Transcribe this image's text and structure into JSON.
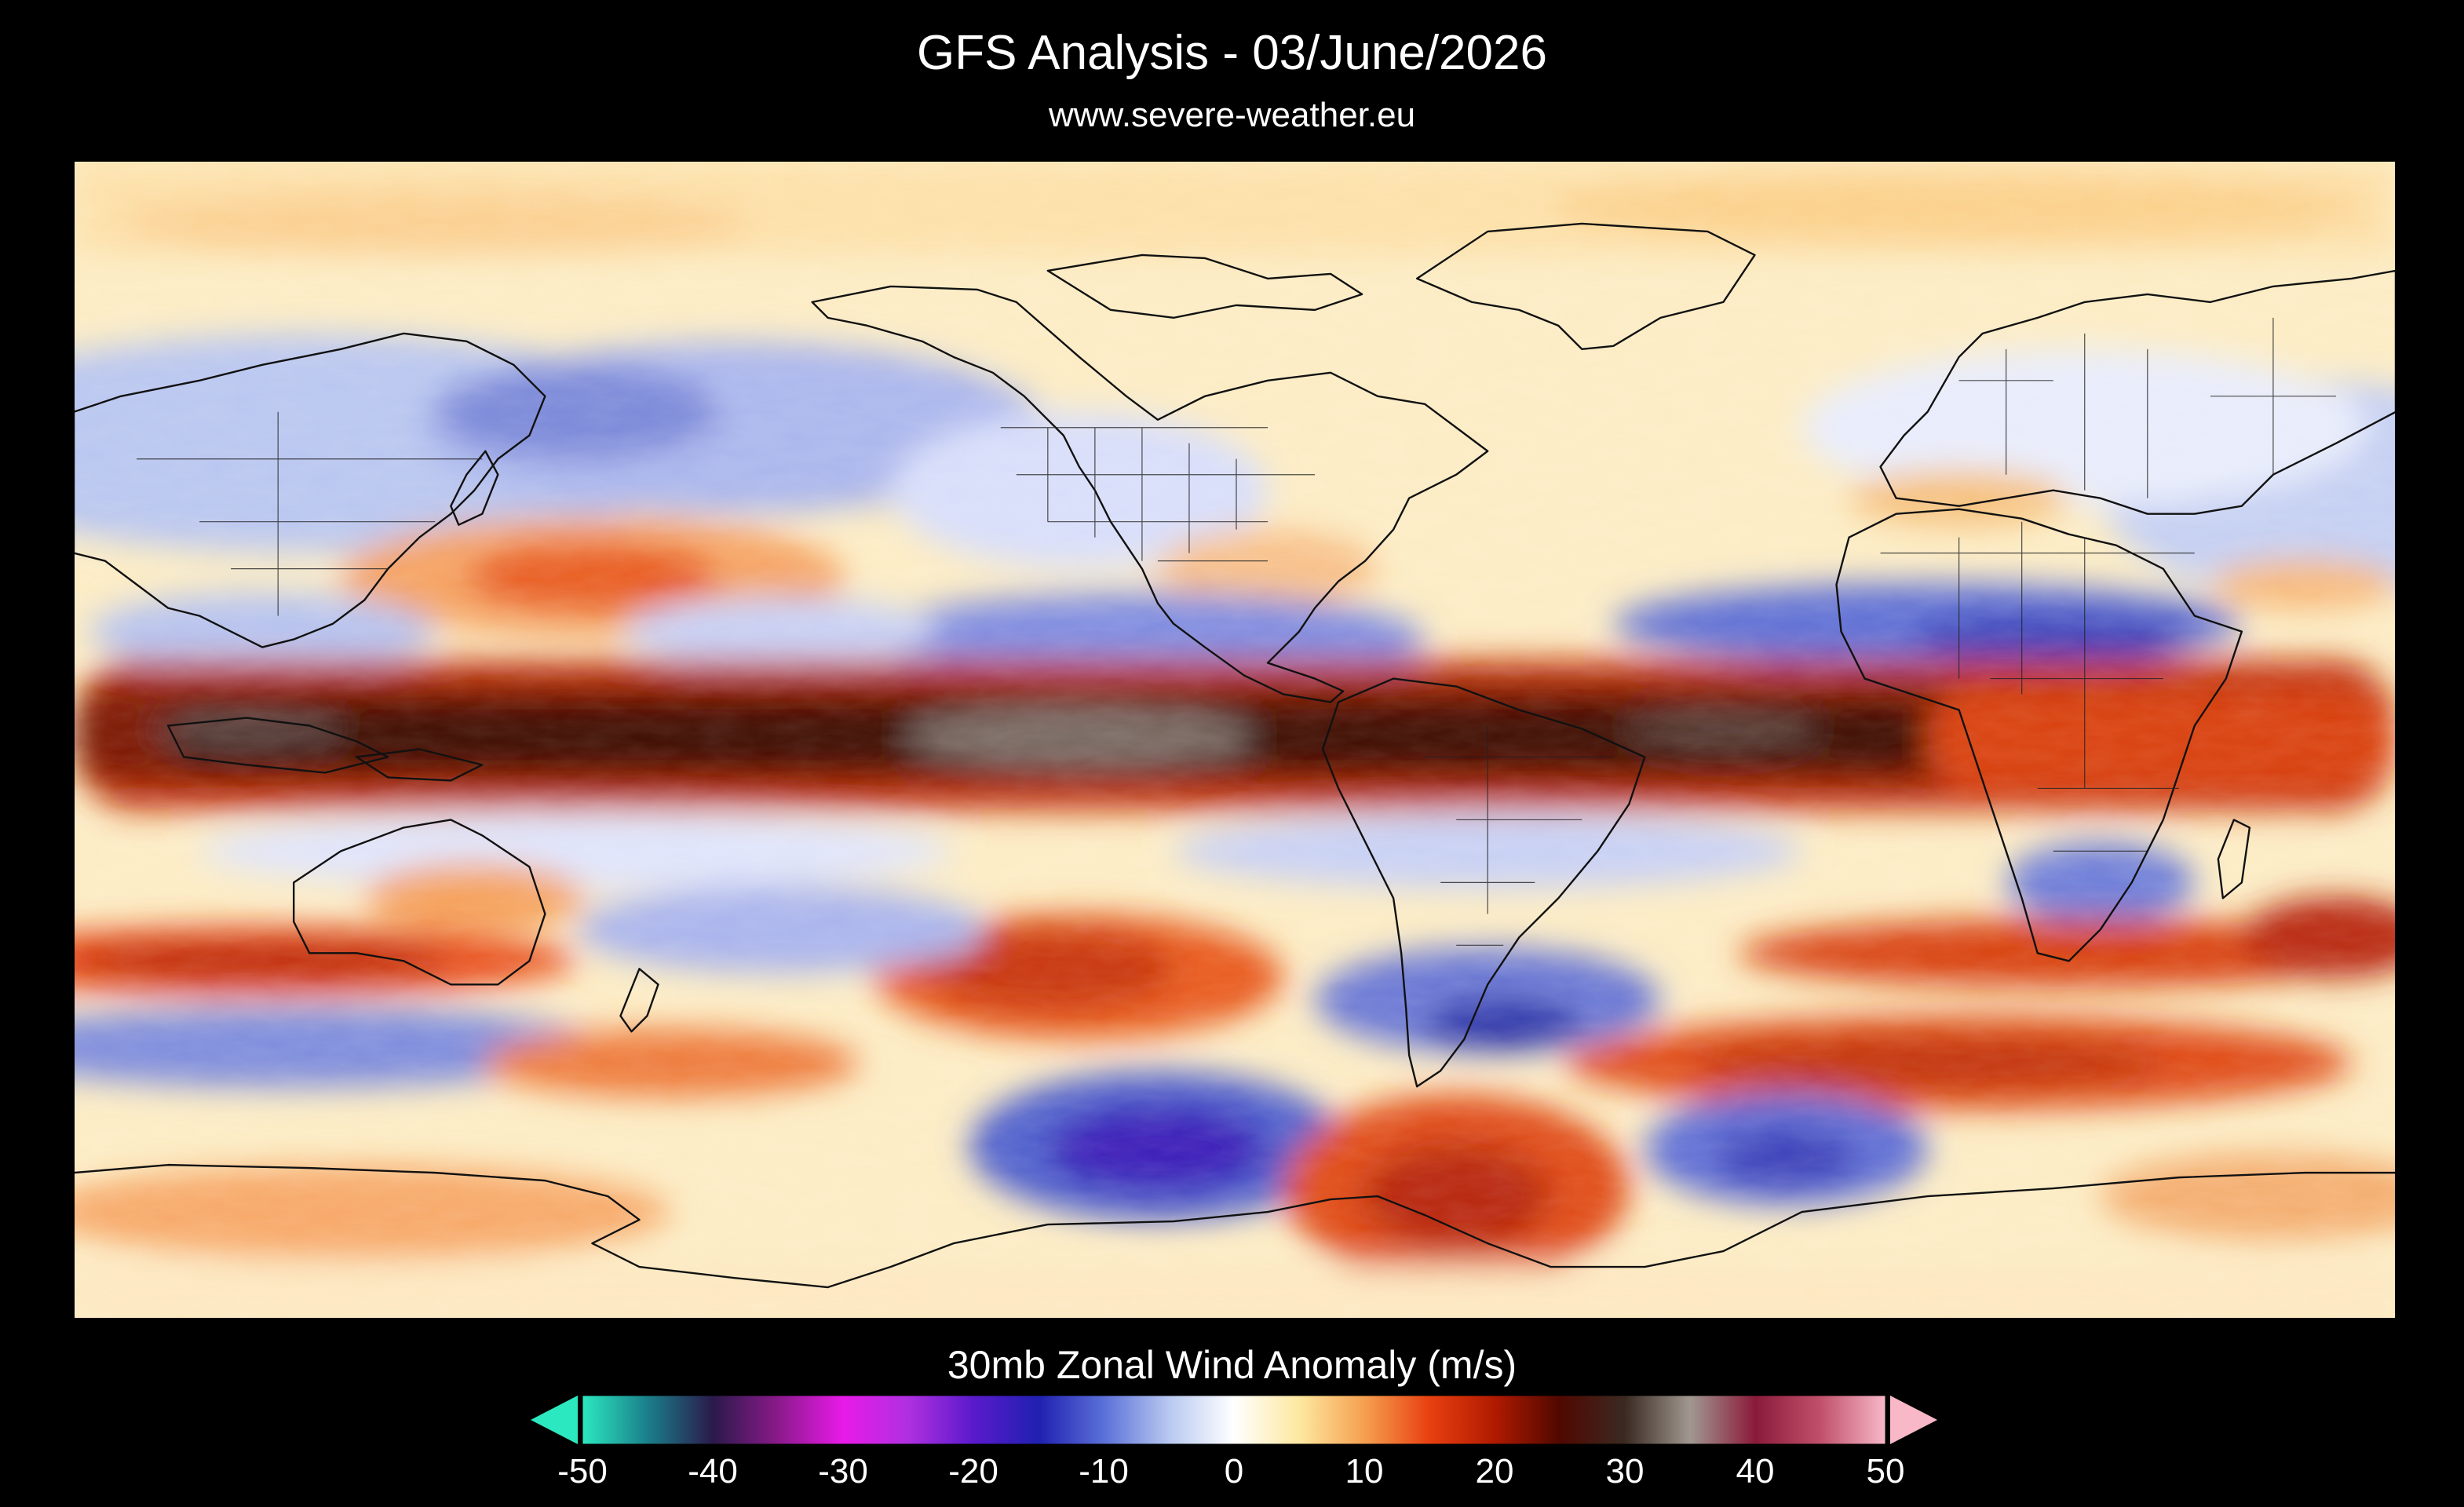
{
  "header": {
    "title": "GFS Analysis - 03/June/2026",
    "source": "www.severe-weather.eu"
  },
  "colorbar": {
    "title": "30mb Zonal Wind Anomaly (m/s)",
    "ticks": [
      "-50",
      "-40",
      "-30",
      "-20",
      "-10",
      "0",
      "10",
      "20",
      "30",
      "40",
      "50"
    ],
    "stops": [
      {
        "value": -50,
        "color": "#2ce8c0"
      },
      {
        "value": -45,
        "color": "#1a7f8a"
      },
      {
        "value": -40,
        "color": "#2a1a4a"
      },
      {
        "value": -35,
        "color": "#8a1a8a"
      },
      {
        "value": -30,
        "color": "#e81ae8"
      },
      {
        "value": -25,
        "color": "#b030e0"
      },
      {
        "value": -20,
        "color": "#5a1acc"
      },
      {
        "value": -15,
        "color": "#2020b0"
      },
      {
        "value": -10,
        "color": "#5a70d8"
      },
      {
        "value": -5,
        "color": "#b8c8f0"
      },
      {
        "value": 0,
        "color": "#ffffff"
      },
      {
        "value": 5,
        "color": "#fde8a0"
      },
      {
        "value": 10,
        "color": "#f5a050"
      },
      {
        "value": 15,
        "color": "#e84010"
      },
      {
        "value": 20,
        "color": "#b01a00"
      },
      {
        "value": 25,
        "color": "#500800"
      },
      {
        "value": 30,
        "color": "#3a2a22"
      },
      {
        "value": 35,
        "color": "#a09890"
      },
      {
        "value": 40,
        "color": "#8a1a3a"
      },
      {
        "value": 45,
        "color": "#c0506a"
      },
      {
        "value": 50,
        "color": "#f8b8c8"
      }
    ],
    "under_color": "#2ce8c0",
    "over_color": "#f8b8c8"
  },
  "map": {
    "projection": "equirectangular",
    "lon_range": [
      70,
      430
    ],
    "lat_range": [
      -90,
      90
    ],
    "variable": "30mb zonal wind anomaly",
    "units": "m/s",
    "features": [
      {
        "name": "equatorial westerly belt",
        "lat": 0,
        "value": 28
      },
      {
        "name": "central pacific maximum",
        "lat": 0,
        "lon": 210,
        "value": 35
      },
      {
        "name": "north pacific positive anomaly",
        "lat": 22,
        "lon": 180,
        "value": 12
      },
      {
        "name": "tropical easterly anomaly atlantic",
        "lat": 12,
        "lon": 230,
        "value": -10
      },
      {
        "name": "south pacific positive anomaly",
        "lat": -30,
        "lon": 230,
        "value": 15
      },
      {
        "name": "southern midlatitude jet",
        "lat": -30,
        "lon": 90,
        "value": 18
      },
      {
        "name": "south pacific negative anomaly",
        "lat": -58,
        "lon": 237,
        "value": -22
      },
      {
        "name": "drake passage negative anomaly",
        "lat": -43,
        "lon": 300,
        "value": -18
      },
      {
        "name": "south atlantic positive anomaly",
        "lat": -52,
        "lon": 350,
        "value": 18
      },
      {
        "name": "antarctic peninsula positive anomaly",
        "lat": -70,
        "lon": 290,
        "value": 20
      }
    ]
  }
}
